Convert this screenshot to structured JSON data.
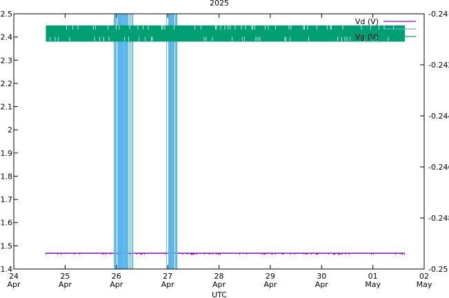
{
  "chart_data": {
    "type": "line",
    "title": "2025",
    "xlabel": "UTC",
    "ylabel": "",
    "y2label": "",
    "x_ticks": [
      {
        "day": 24,
        "month": "Apr"
      },
      {
        "day": 25,
        "month": "Apr"
      },
      {
        "day": 26,
        "month": "Apr"
      },
      {
        "day": 27,
        "month": "Apr"
      },
      {
        "day": 28,
        "month": "Apr"
      },
      {
        "day": 29,
        "month": "Apr"
      },
      {
        "day": 30,
        "month": "Apr"
      },
      {
        "day": "01",
        "month": "May"
      },
      {
        "day": "02",
        "month": "May"
      }
    ],
    "x_range": [
      "2025-04-24",
      "2025-05-02"
    ],
    "ylim": [
      1.4,
      2.5
    ],
    "y_ticks": [
      "1.4",
      "1.5",
      "1.6",
      "1.7",
      "1.8",
      "1.9",
      "2",
      "2.1",
      "2.2",
      "2.3",
      "2.4",
      "2.5"
    ],
    "y2lim": [
      -0.25,
      -0.24
    ],
    "y2_ticks": [
      "-0.25",
      "-0.248",
      "-0.246",
      "-0.244",
      "-0.242",
      "-0.24"
    ],
    "grid": false,
    "legend_position": "top-right",
    "series": [
      {
        "name": "Vd (V)",
        "axis": "y",
        "color": "#9400d3",
        "x_start": "2025-04-24T15:00",
        "x_end": "2025-05-01T15:00",
        "base": 1.468,
        "noise_low": 1.462,
        "style": "flat-with-dips"
      },
      {
        "name": "",
        "axis": "y2",
        "color": "#56b4e9",
        "segments": [
          {
            "start": "2025-04-25T23:00",
            "end": "2025-04-26T08:00",
            "low": -0.25,
            "high": -0.24
          },
          {
            "start": "2025-04-26T23:30",
            "end": "2025-04-27T04:30",
            "low": -0.25,
            "high": -0.24
          }
        ],
        "style": "oscillating"
      },
      {
        "name": "Vg (V)",
        "axis": "y",
        "color": "#009e73",
        "x_start": "2025-04-24T15:00",
        "x_end": "2025-05-01T15:00",
        "low": 2.38,
        "high": 2.45,
        "style": "oscillating"
      }
    ]
  }
}
